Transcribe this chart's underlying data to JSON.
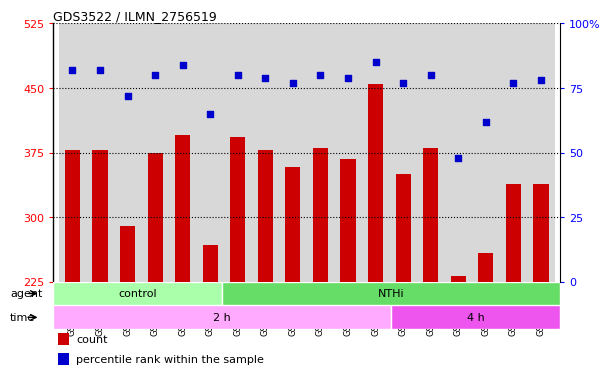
{
  "title": "GDS3522 / ILMN_2756519",
  "samples": [
    "GSM345353",
    "GSM345354",
    "GSM345355",
    "GSM345356",
    "GSM345357",
    "GSM345358",
    "GSM345359",
    "GSM345360",
    "GSM345361",
    "GSM345362",
    "GSM345363",
    "GSM345364",
    "GSM345365",
    "GSM345366",
    "GSM345367",
    "GSM345368",
    "GSM345369",
    "GSM345370"
  ],
  "counts": [
    378,
    378,
    290,
    375,
    395,
    268,
    393,
    378,
    358,
    380,
    368,
    455,
    350,
    380,
    232,
    258,
    338,
    338
  ],
  "percentiles": [
    82,
    82,
    72,
    80,
    84,
    65,
    80,
    79,
    77,
    80,
    79,
    85,
    77,
    80,
    48,
    62,
    77,
    78
  ],
  "ylim_left": [
    225,
    525
  ],
  "yticks_left": [
    225,
    300,
    375,
    450,
    525
  ],
  "ylim_right": [
    0,
    100
  ],
  "yticks_right": [
    0,
    25,
    50,
    75,
    100
  ],
  "bar_color": "#cc0000",
  "dot_color": "#0000cc",
  "agent_groups": [
    {
      "label": "control",
      "start": 0,
      "end": 5,
      "color": "#aaffaa"
    },
    {
      "label": "NTHi",
      "start": 6,
      "end": 17,
      "color": "#66dd66"
    }
  ],
  "time_groups": [
    {
      "label": "2 h",
      "start": 0,
      "end": 11,
      "color": "#ffaaff"
    },
    {
      "label": "4 h",
      "start": 12,
      "end": 17,
      "color": "#ee55ee"
    }
  ],
  "agent_label": "agent",
  "time_label": "time",
  "legend_count": "count",
  "legend_pct": "percentile rank within the sample"
}
